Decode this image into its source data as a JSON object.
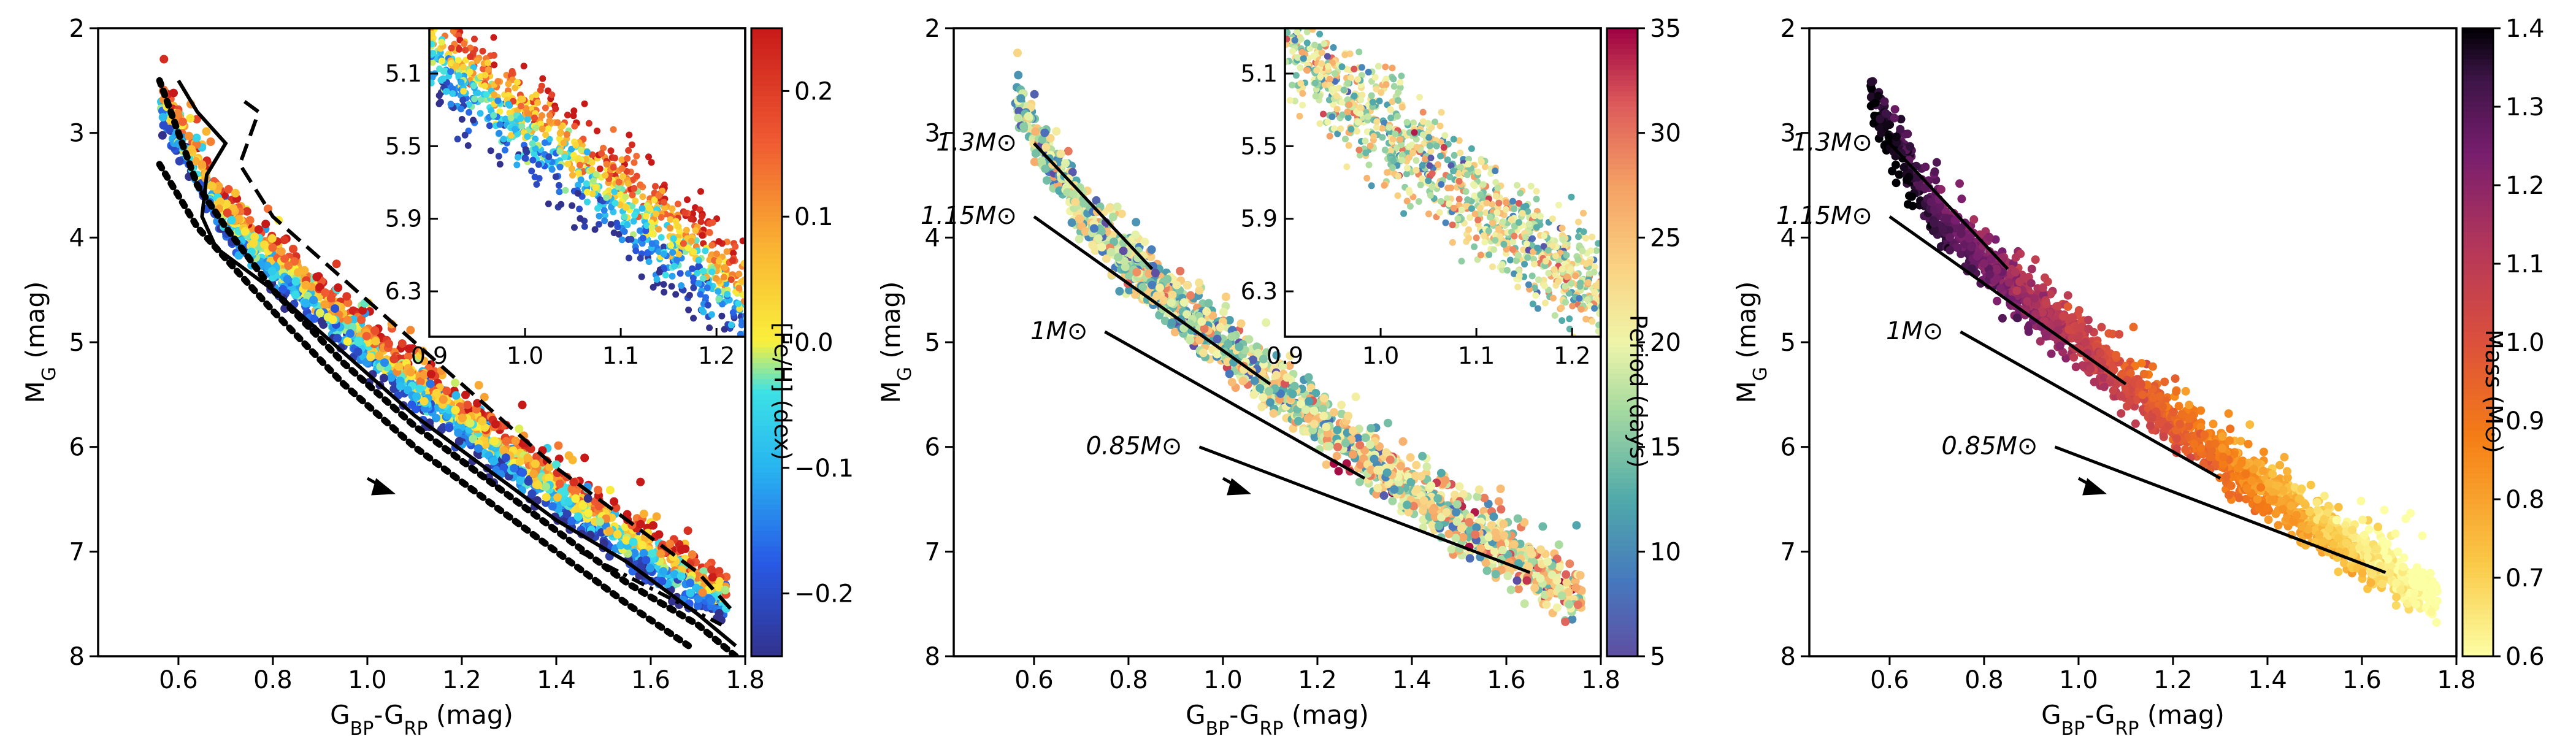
{
  "chart_data": [
    {
      "type": "scatter",
      "panel": "left",
      "xlabel": "G_BP-G_RP (mag)",
      "ylabel": "M_G (mag)",
      "xlim": [
        0.43,
        1.8
      ],
      "ylim": [
        8,
        2
      ],
      "xticks": [
        "0.6",
        "0.8",
        "1.0",
        "1.2",
        "1.4",
        "1.6",
        "1.8"
      ],
      "yticks": [
        "2",
        "3",
        "4",
        "5",
        "6",
        "7",
        "8"
      ],
      "colorbar": {
        "label": "[Fe/H] (dex)",
        "range": [
          -0.25,
          0.25
        ],
        "ticks": [
          "0.2",
          "0.1",
          "0.0",
          "−0.1",
          "−0.2"
        ],
        "colormap": "jet"
      },
      "curves": [
        {
          "style": "solid",
          "x": [
            0.6,
            0.64,
            0.7,
            0.66,
            0.65,
            0.68,
            0.8,
            0.95,
            1.1,
            1.25,
            1.4,
            1.55,
            1.7,
            1.78
          ],
          "y": [
            2.5,
            2.8,
            3.1,
            3.4,
            3.8,
            4.1,
            4.5,
            5.1,
            5.7,
            6.2,
            6.7,
            7.1,
            7.6,
            7.9
          ]
        },
        {
          "style": "dashed",
          "x": [
            0.74,
            0.77,
            0.73,
            0.8,
            0.95,
            1.1,
            1.25,
            1.4,
            1.55,
            1.7,
            1.78
          ],
          "y": [
            2.7,
            2.8,
            3.3,
            3.8,
            4.4,
            5.0,
            5.6,
            6.2,
            6.7,
            7.2,
            7.6
          ]
        },
        {
          "style": "dotted",
          "x": [
            0.56,
            0.6,
            0.64,
            0.7,
            0.8,
            0.95,
            1.1,
            1.25,
            1.4,
            1.55,
            1.7,
            1.78
          ],
          "y": [
            2.5,
            3.0,
            3.5,
            3.9,
            4.5,
            5.2,
            5.8,
            6.3,
            6.8,
            7.3,
            7.7,
            8.0
          ]
        },
        {
          "style": "dotted",
          "x": [
            0.56,
            0.6,
            0.64,
            0.7,
            0.8,
            0.95,
            1.1,
            1.25,
            1.4,
            1.55,
            1.68
          ],
          "y": [
            3.3,
            3.6,
            3.9,
            4.2,
            4.7,
            5.4,
            6.0,
            6.5,
            7.0,
            7.5,
            7.9
          ]
        },
        {
          "style": "dashdot",
          "x": [
            1.45,
            1.6,
            1.75
          ],
          "y": [
            7.0,
            7.35,
            7.7
          ]
        }
      ],
      "inset": {
        "xlim": [
          0.9,
          1.23
        ],
        "ylim": [
          6.55,
          4.85
        ],
        "xticks": [
          "0.9",
          "1.0",
          "1.1",
          "1.2"
        ],
        "yticks": [
          "5.1",
          "5.5",
          "5.9",
          "6.3"
        ]
      },
      "arrow": {
        "from": [
          1.0,
          6.3
        ],
        "to": [
          1.06,
          6.45
        ]
      }
    },
    {
      "type": "scatter",
      "panel": "middle",
      "xlabel": "G_BP-G_RP (mag)",
      "ylabel": "M_G (mag)",
      "xlim": [
        0.43,
        1.8
      ],
      "ylim": [
        8,
        2
      ],
      "xticks": [
        "0.6",
        "0.8",
        "1.0",
        "1.2",
        "1.4",
        "1.6",
        "1.8"
      ],
      "yticks": [
        "2",
        "3",
        "4",
        "5",
        "6",
        "7",
        "8"
      ],
      "colorbar": {
        "label": "Period (days)",
        "range": [
          5,
          35
        ],
        "ticks": [
          "35",
          "30",
          "25",
          "20",
          "15",
          "10",
          "5"
        ],
        "colormap": "spectral"
      },
      "mass_tracks": [
        {
          "label": "1.3M⊙",
          "x": [
            0.6,
            0.85
          ],
          "y": [
            3.1,
            4.3
          ]
        },
        {
          "label": "1.15M⊙",
          "x": [
            0.6,
            1.1
          ],
          "y": [
            3.8,
            5.4
          ]
        },
        {
          "label": "1M⊙",
          "x": [
            0.75,
            1.3
          ],
          "y": [
            4.9,
            6.3
          ]
        },
        {
          "label": "0.85M⊙",
          "x": [
            0.95,
            1.65
          ],
          "y": [
            6.0,
            7.2
          ]
        }
      ],
      "inset": {
        "xlim": [
          0.9,
          1.23
        ],
        "ylim": [
          6.55,
          4.85
        ],
        "xticks": [
          "0.9",
          "1.0",
          "1.1",
          "1.2"
        ],
        "yticks": [
          "5.1",
          "5.5",
          "5.9",
          "6.3"
        ]
      },
      "arrow": {
        "from": [
          1.0,
          6.3
        ],
        "to": [
          1.06,
          6.45
        ]
      }
    },
    {
      "type": "scatter",
      "panel": "right",
      "xlabel": "G_BP-G_RP (mag)",
      "ylabel": "M_G (mag)",
      "xlim": [
        0.43,
        1.8
      ],
      "ylim": [
        8,
        2
      ],
      "xticks": [
        "0.6",
        "0.8",
        "1.0",
        "1.2",
        "1.4",
        "1.6",
        "1.8"
      ],
      "yticks": [
        "2",
        "3",
        "4",
        "5",
        "6",
        "7",
        "8"
      ],
      "colorbar": {
        "label": "Mass (M⊙)",
        "range": [
          0.6,
          1.4
        ],
        "ticks": [
          "1.4",
          "1.3",
          "1.2",
          "1.1",
          "1.0",
          "0.9",
          "0.8",
          "0.7",
          "0.6"
        ],
        "colormap": "inferno_r"
      },
      "mass_tracks": [
        {
          "label": "1.3M⊙",
          "x": [
            0.6,
            0.85
          ],
          "y": [
            3.1,
            4.3
          ]
        },
        {
          "label": "1.15M⊙",
          "x": [
            0.6,
            1.1
          ],
          "y": [
            3.8,
            5.4
          ]
        },
        {
          "label": "1M⊙",
          "x": [
            0.75,
            1.3
          ],
          "y": [
            4.9,
            6.3
          ]
        },
        {
          "label": "0.85M⊙",
          "x": [
            0.95,
            1.65
          ],
          "y": [
            6.0,
            7.2
          ]
        }
      ],
      "arrow": {
        "from": [
          1.0,
          6.3
        ],
        "to": [
          1.06,
          6.45
        ]
      }
    }
  ]
}
